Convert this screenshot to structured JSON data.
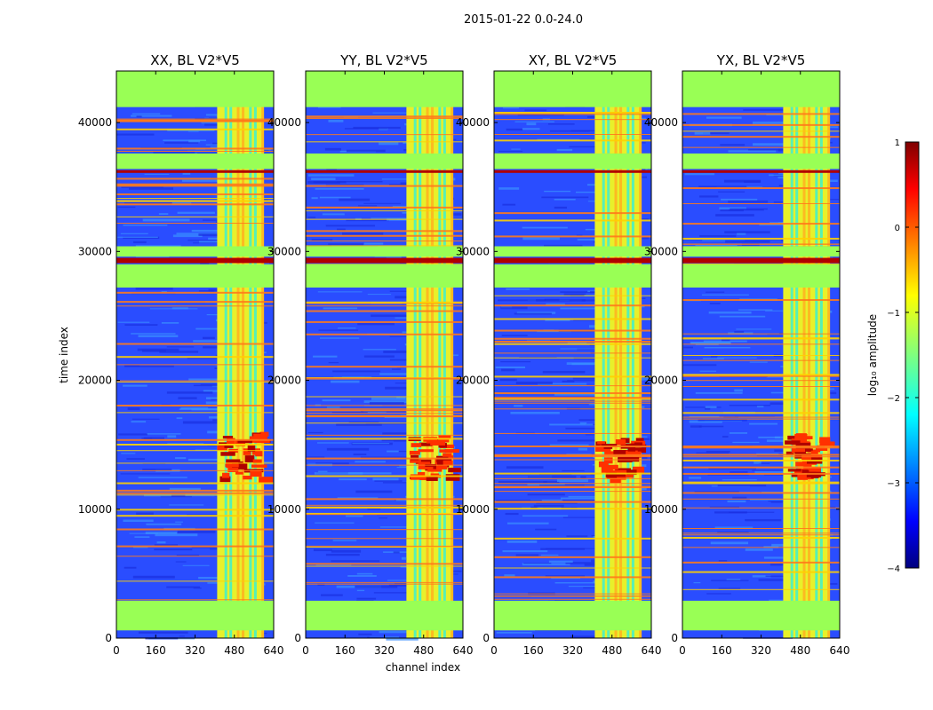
{
  "chart_data": {
    "type": "heatmap",
    "suptitle": "2015-01-22 0.0-24.0",
    "xlabel": "channel index",
    "ylabel": "time index",
    "xlim": [
      0,
      640
    ],
    "ylim": [
      0,
      44000
    ],
    "x_ticks": [
      "0",
      "160",
      "320",
      "480",
      "640"
    ],
    "x_tick_values": [
      0,
      160,
      320,
      480,
      640
    ],
    "y_ticks": [
      "0",
      "10000",
      "20000",
      "30000",
      "40000"
    ],
    "y_tick_values": [
      0,
      10000,
      20000,
      30000,
      40000
    ],
    "panels": [
      {
        "title": "XX, BL V2*V5"
      },
      {
        "title": "YY, BL V2*V5"
      },
      {
        "title": "XY, BL V2*V5"
      },
      {
        "title": "YX, BL V2*V5"
      }
    ],
    "colorbar": {
      "label": "log₁₀ amplitude",
      "range": [
        -4,
        1
      ],
      "ticks": [
        "1",
        "0",
        "−1",
        "−2",
        "−3",
        "−4"
      ],
      "tick_values": [
        1,
        0,
        -1,
        -2,
        -3,
        -4
      ],
      "colormap": "jet"
    },
    "flagged_value": -1,
    "flagged_time_ranges": [
      [
        600,
        2900
      ],
      [
        36400,
        37600
      ],
      [
        41200,
        44000
      ],
      [
        27200,
        29000
      ],
      [
        29600,
        30400
      ]
    ],
    "saturated_time_rows": [
      29200,
      29400,
      36200
    ],
    "rfi_channel_range": [
      410,
      600
    ],
    "rfi_channel_lines": [
      440,
      460,
      490,
      510,
      540,
      560,
      590
    ],
    "burst_time_range": [
      12500,
      16000
    ]
  },
  "colors": {
    "flag_green": "#99ff55",
    "background_blue": "#2a4dff",
    "rfi_yellow": "#e8f02a",
    "line_orange": "#ff7a1a",
    "hot_red": "#b00000"
  }
}
